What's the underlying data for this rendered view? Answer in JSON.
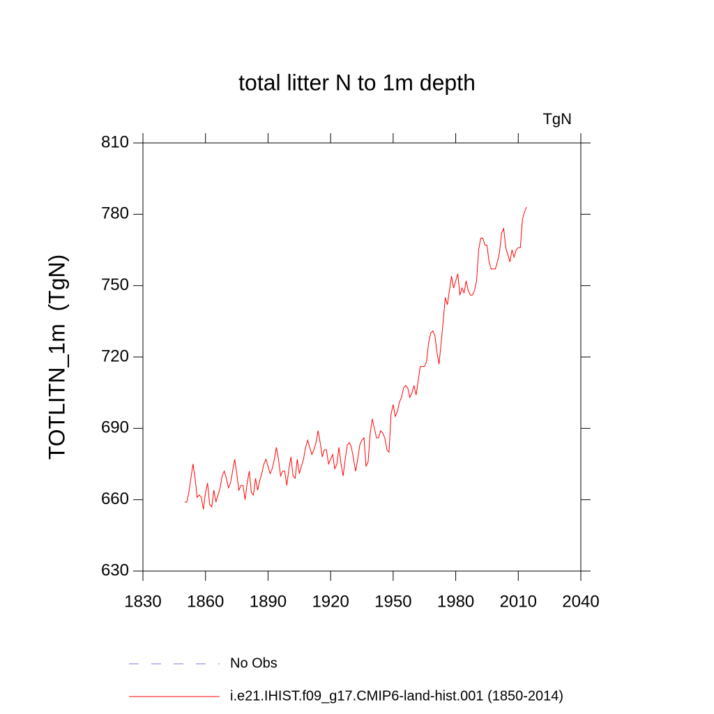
{
  "chart_data": {
    "type": "line",
    "title": "total litter N to 1m depth",
    "units": "TgN",
    "y_label": "TOTLITN_1m  (TgN)",
    "xlim": [
      1830,
      2040
    ],
    "xticks": [
      1830,
      1860,
      1890,
      1920,
      1950,
      1980,
      2010,
      2040
    ],
    "ylim": [
      630,
      810
    ],
    "yticks": [
      630,
      660,
      690,
      720,
      750,
      780,
      810
    ],
    "reference_lines": [
      {
        "name": "No Obs",
        "color": "#7b7bd6",
        "dash": "dashed"
      }
    ],
    "x": [
      1850,
      1851,
      1852,
      1853,
      1854,
      1855,
      1856,
      1857,
      1858,
      1859,
      1860,
      1861,
      1862,
      1863,
      1864,
      1865,
      1866,
      1867,
      1868,
      1869,
      1870,
      1871,
      1872,
      1873,
      1874,
      1875,
      1876,
      1877,
      1878,
      1879,
      1880,
      1881,
      1882,
      1883,
      1884,
      1885,
      1886,
      1887,
      1888,
      1889,
      1890,
      1891,
      1892,
      1893,
      1894,
      1895,
      1896,
      1897,
      1898,
      1899,
      1900,
      1901,
      1902,
      1903,
      1904,
      1905,
      1906,
      1907,
      1908,
      1909,
      1910,
      1911,
      1912,
      1913,
      1914,
      1915,
      1916,
      1917,
      1918,
      1919,
      1920,
      1921,
      1922,
      1923,
      1924,
      1925,
      1926,
      1927,
      1928,
      1929,
      1930,
      1931,
      1932,
      1933,
      1934,
      1935,
      1936,
      1937,
      1938,
      1939,
      1940,
      1941,
      1942,
      1943,
      1944,
      1945,
      1946,
      1947,
      1948,
      1949,
      1950,
      1951,
      1952,
      1953,
      1954,
      1955,
      1956,
      1957,
      1958,
      1959,
      1960,
      1961,
      1962,
      1963,
      1964,
      1965,
      1966,
      1967,
      1968,
      1969,
      1970,
      1971,
      1972,
      1973,
      1974,
      1975,
      1976,
      1977,
      1978,
      1979,
      1980,
      1981,
      1982,
      1983,
      1984,
      1985,
      1986,
      1987,
      1988,
      1989,
      1990,
      1991,
      1992,
      1993,
      1994,
      1995,
      1996,
      1997,
      1998,
      1999,
      2000,
      2001,
      2002,
      2003,
      2004,
      2005,
      2006,
      2007,
      2008,
      2009,
      2010,
      2011,
      2012,
      2013,
      2014
    ],
    "series": [
      {
        "name": "i.e21.IHIST.f09_g17.CMIP6-land-hist.001 (1850-2014)",
        "color": "#ff0000",
        "values": [
          659,
          659,
          663,
          669,
          675,
          669,
          661,
          662,
          661,
          656,
          663,
          667,
          658,
          657,
          664,
          659,
          662,
          665,
          670,
          672,
          669,
          665,
          667,
          672,
          677,
          671,
          664,
          666,
          666,
          660,
          667,
          672,
          663,
          662,
          669,
          664,
          668,
          671,
          675,
          677,
          674,
          671,
          673,
          677,
          682,
          677,
          670,
          672,
          672,
          666,
          673,
          678,
          670,
          669,
          677,
          671,
          674,
          677,
          682,
          685,
          682,
          679,
          681,
          684,
          689,
          684,
          678,
          681,
          681,
          675,
          677,
          679,
          673,
          675,
          682,
          675,
          670,
          677,
          683,
          684,
          682,
          677,
          672,
          677,
          683,
          685,
          686,
          674,
          676,
          688,
          694,
          690,
          686,
          686,
          689,
          688,
          686,
          681,
          680,
          696,
          700,
          695,
          697,
          701,
          703,
          707,
          708,
          707,
          703,
          705,
          708,
          704,
          710,
          716,
          716,
          716,
          718,
          726,
          730,
          731,
          729,
          722,
          717,
          726,
          735,
          745,
          742,
          748,
          754,
          749,
          752,
          755,
          746,
          749,
          747,
          752,
          748,
          746,
          746,
          748,
          752,
          765,
          770,
          770,
          767,
          767,
          760,
          757,
          757,
          757,
          760,
          764,
          772,
          774,
          766,
          763,
          760,
          765,
          762,
          765,
          766,
          766,
          778,
          781,
          783
        ]
      }
    ]
  }
}
